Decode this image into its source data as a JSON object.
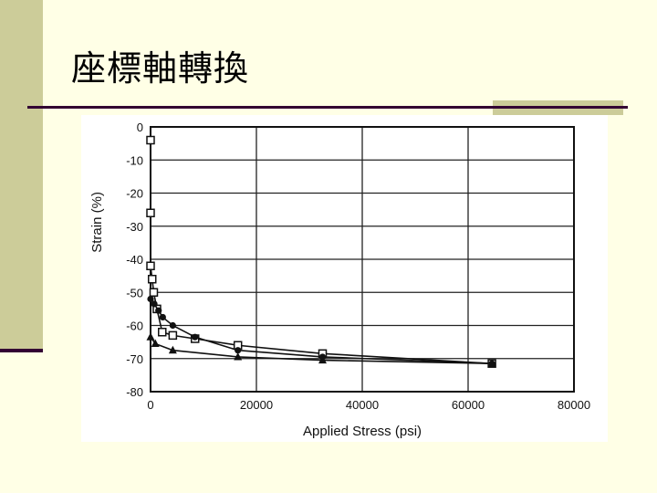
{
  "slide": {
    "title": "座標軸轉換"
  },
  "chart_data": {
    "type": "line",
    "xlabel": "Applied Stress (psi)",
    "ylabel": "Strain (%)",
    "xlim": [
      0,
      80000
    ],
    "ylim": [
      -80,
      0
    ],
    "xticks": [
      0,
      20000,
      40000,
      60000,
      80000
    ],
    "yticks": [
      0,
      -10,
      -20,
      -30,
      -40,
      -50,
      -60,
      -70,
      -80
    ],
    "grid": true,
    "series": [
      {
        "marker": "open-square",
        "values": [
          [
            0,
            -4
          ],
          [
            0,
            -26
          ],
          [
            0,
            -42
          ],
          [
            300,
            -46
          ],
          [
            600,
            -50
          ],
          [
            1200,
            -55
          ],
          [
            2200,
            -62
          ],
          [
            4200,
            -63
          ],
          [
            8400,
            -64
          ],
          [
            16500,
            -66
          ],
          [
            32500,
            -68.5
          ],
          [
            64500,
            -71.5
          ]
        ]
      },
      {
        "marker": "filled-circle",
        "values": [
          [
            0,
            -52
          ],
          [
            700,
            -53.5
          ],
          [
            1500,
            -55.5
          ],
          [
            2300,
            -57.5
          ],
          [
            4200,
            -60
          ],
          [
            8400,
            -63.5
          ],
          [
            16500,
            -67.5
          ],
          [
            32500,
            -69.5
          ],
          [
            64500,
            -71.5
          ]
        ]
      },
      {
        "marker": "filled-triangle",
        "values": [
          [
            0,
            -63.5
          ],
          [
            900,
            -65.5
          ],
          [
            4200,
            -67.5
          ],
          [
            16500,
            -69.5
          ],
          [
            32500,
            -70.5
          ],
          [
            64500,
            -71.5
          ]
        ]
      }
    ]
  }
}
